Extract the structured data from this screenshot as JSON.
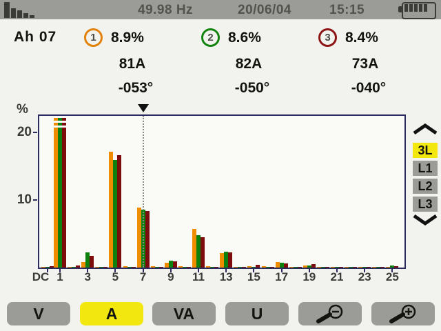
{
  "top_bar": {
    "frequency": "49.98 Hz",
    "date": "20/06/04",
    "time": "15:15",
    "battery_bars": 5,
    "mode_icon": "harmonics-histogram-icon",
    "battery_icon": "battery-full-icon"
  },
  "header": {
    "mode_label": "Ah 07",
    "phases": [
      {
        "id": "1",
        "color": "#e2820c",
        "thd": "8.9%",
        "amplitude": "81A",
        "angle": "-053°"
      },
      {
        "id": "2",
        "color": "#12830f",
        "thd": "8.6%",
        "amplitude": "82A",
        "angle": "-050°"
      },
      {
        "id": "3",
        "color": "#8c1414",
        "thd": "8.4%",
        "amplitude": "73A",
        "angle": "-040°"
      }
    ]
  },
  "chart_data": {
    "type": "bar",
    "ylabel": "%",
    "ylim": [
      0,
      22.4
    ],
    "yticks": [
      20,
      10
    ],
    "ytick_labels": [
      "20",
      "10"
    ],
    "categories": [
      "DC",
      "1",
      "2",
      "3",
      "4",
      "5",
      "6",
      "7",
      "8",
      "9",
      "10",
      "11",
      "12",
      "13",
      "14",
      "15",
      "16",
      "17",
      "18",
      "19",
      "20",
      "21",
      "22",
      "23",
      "24",
      "25"
    ],
    "x_axis_labels": [
      "DC",
      "1",
      "3",
      "5",
      "7",
      "9",
      "11",
      "13",
      "15",
      "17",
      "19",
      "21",
      "23",
      "25"
    ],
    "cursor_category": "7",
    "clipped_categories": [
      "1"
    ],
    "note": "harmonic 1 bars exceed the y-scale and are drawn clipped with white break marks",
    "series": [
      {
        "name": "phase-1",
        "color": "#f08c00",
        "values": [
          0.15,
          22.2,
          0.1,
          0.8,
          0.15,
          17.1,
          0.2,
          8.9,
          0.2,
          0.7,
          0.2,
          5.7,
          0.2,
          2.1,
          0.1,
          0.2,
          0.2,
          0.8,
          0.15,
          0.35,
          0.15,
          0.15,
          0.1,
          0.15,
          0.15,
          0.1
        ]
      },
      {
        "name": "phase-2",
        "color": "#0e800e",
        "values": [
          0.1,
          22.2,
          0.1,
          2.2,
          0.1,
          15.9,
          0.1,
          8.6,
          0.1,
          1.0,
          0.1,
          4.8,
          0.1,
          2.3,
          0.1,
          0.15,
          0.1,
          0.7,
          0.1,
          0.3,
          0.1,
          0.1,
          0.1,
          0.15,
          0.1,
          0.3
        ]
      },
      {
        "name": "phase-3",
        "color": "#7d0c0c",
        "values": [
          0.25,
          22.2,
          0.3,
          1.7,
          0.1,
          16.6,
          0.1,
          8.4,
          0.1,
          0.9,
          0.1,
          4.5,
          0.1,
          2.2,
          0.1,
          0.4,
          0.15,
          0.6,
          0.1,
          0.5,
          0.1,
          0.1,
          0.1,
          0.1,
          0.1,
          0.2
        ]
      }
    ]
  },
  "phase_selector": {
    "options": [
      {
        "label": "3L",
        "selected": true
      },
      {
        "label": "L1",
        "selected": false
      },
      {
        "label": "L2",
        "selected": false
      },
      {
        "label": "L3",
        "selected": false
      }
    ]
  },
  "bottom_buttons": [
    {
      "label": "V",
      "active": false
    },
    {
      "label": "A",
      "active": true
    },
    {
      "label": "VA",
      "active": false
    },
    {
      "label": "U",
      "active": false
    },
    {
      "label": "",
      "icon": "zoom-out",
      "active": false
    },
    {
      "label": "",
      "icon": "zoom-in",
      "active": false
    }
  ],
  "colors": {
    "accent_yellow": "#f2e70e",
    "ui_gray": "#9b9b97",
    "chart_border_navy": "#2b2b5e",
    "phase1_orange": "#f08c00",
    "phase2_green": "#0e800e",
    "phase3_red": "#7d0c0c"
  }
}
